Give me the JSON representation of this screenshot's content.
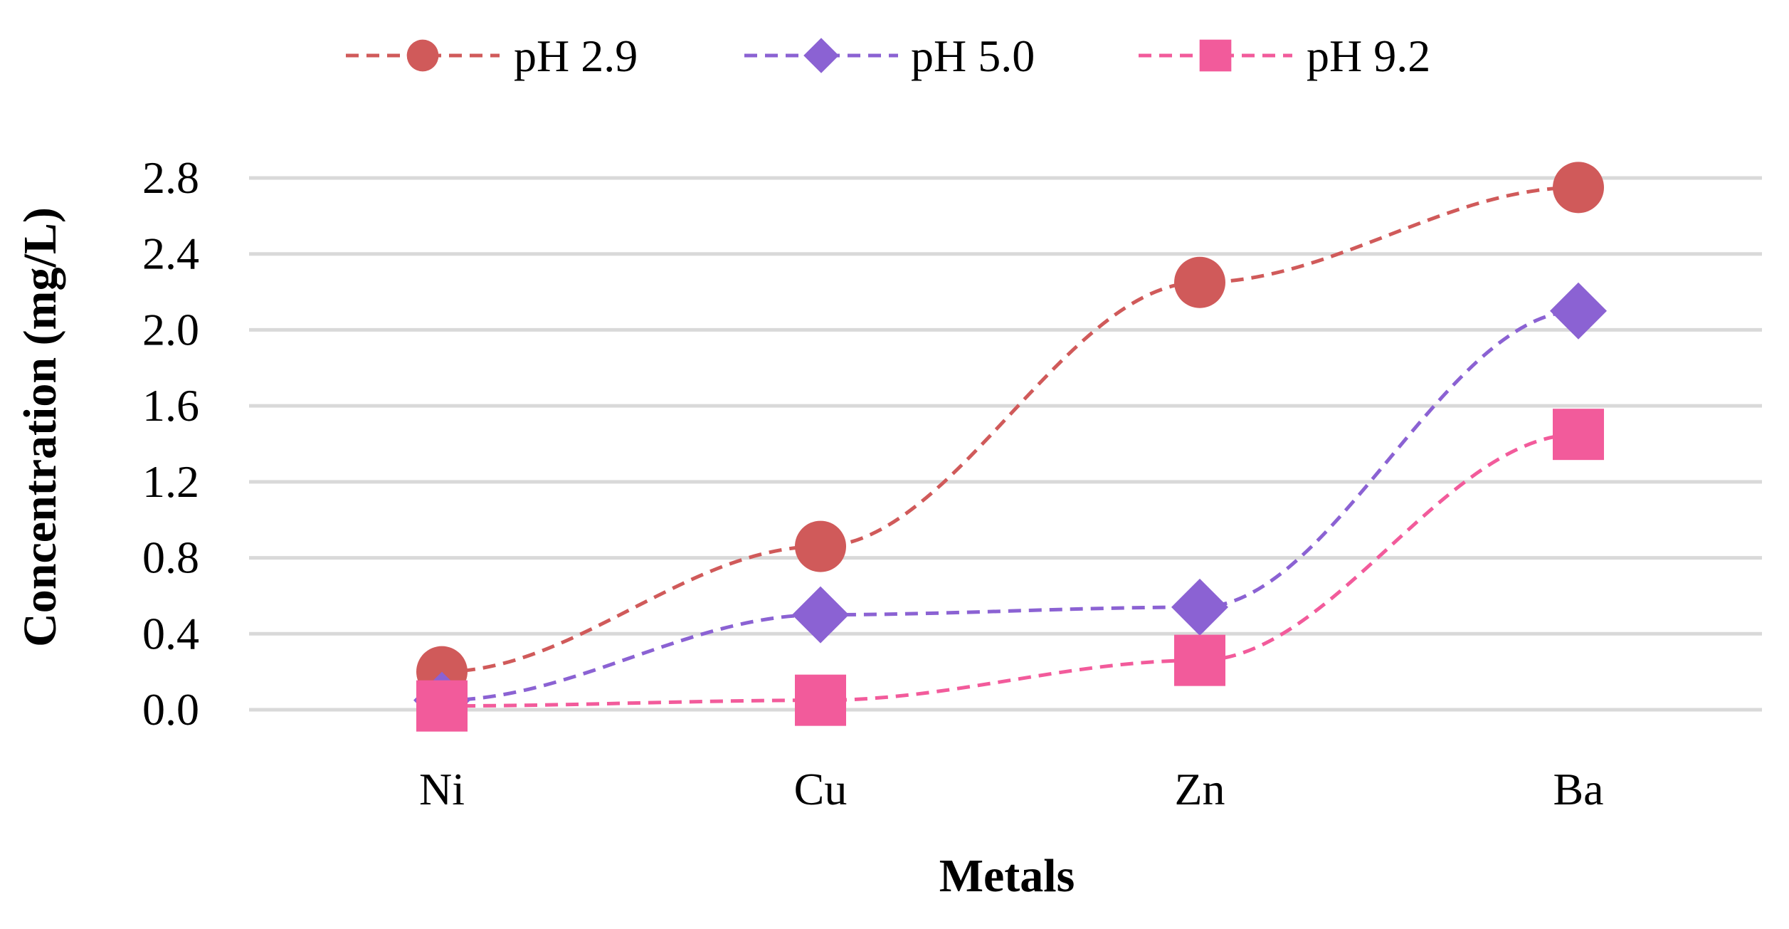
{
  "chart_data": {
    "type": "line",
    "title": "",
    "xlabel": "Metals",
    "ylabel": "Concentration (mg/L)",
    "categories": [
      "Ni",
      "Cu",
      "Zn",
      "Ba"
    ],
    "ylim": [
      0,
      2.8
    ],
    "yticks": [
      "0.0",
      "0.4",
      "0.8",
      "1.2",
      "1.6",
      "2.0",
      "2.4",
      "2.8"
    ],
    "grid": true,
    "legend_position": "top",
    "series": [
      {
        "name": "pH 2.9",
        "marker": "circle",
        "color": "#d05a5a",
        "values": [
          0.2,
          0.86,
          2.25,
          2.75
        ]
      },
      {
        "name": "pH 5.0",
        "marker": "diamond",
        "color": "#8b62d3",
        "values": [
          0.05,
          0.5,
          0.54,
          2.1
        ]
      },
      {
        "name": "pH 9.2",
        "marker": "square",
        "color": "#f25b9b",
        "values": [
          0.02,
          0.05,
          0.26,
          1.45
        ]
      }
    ]
  }
}
